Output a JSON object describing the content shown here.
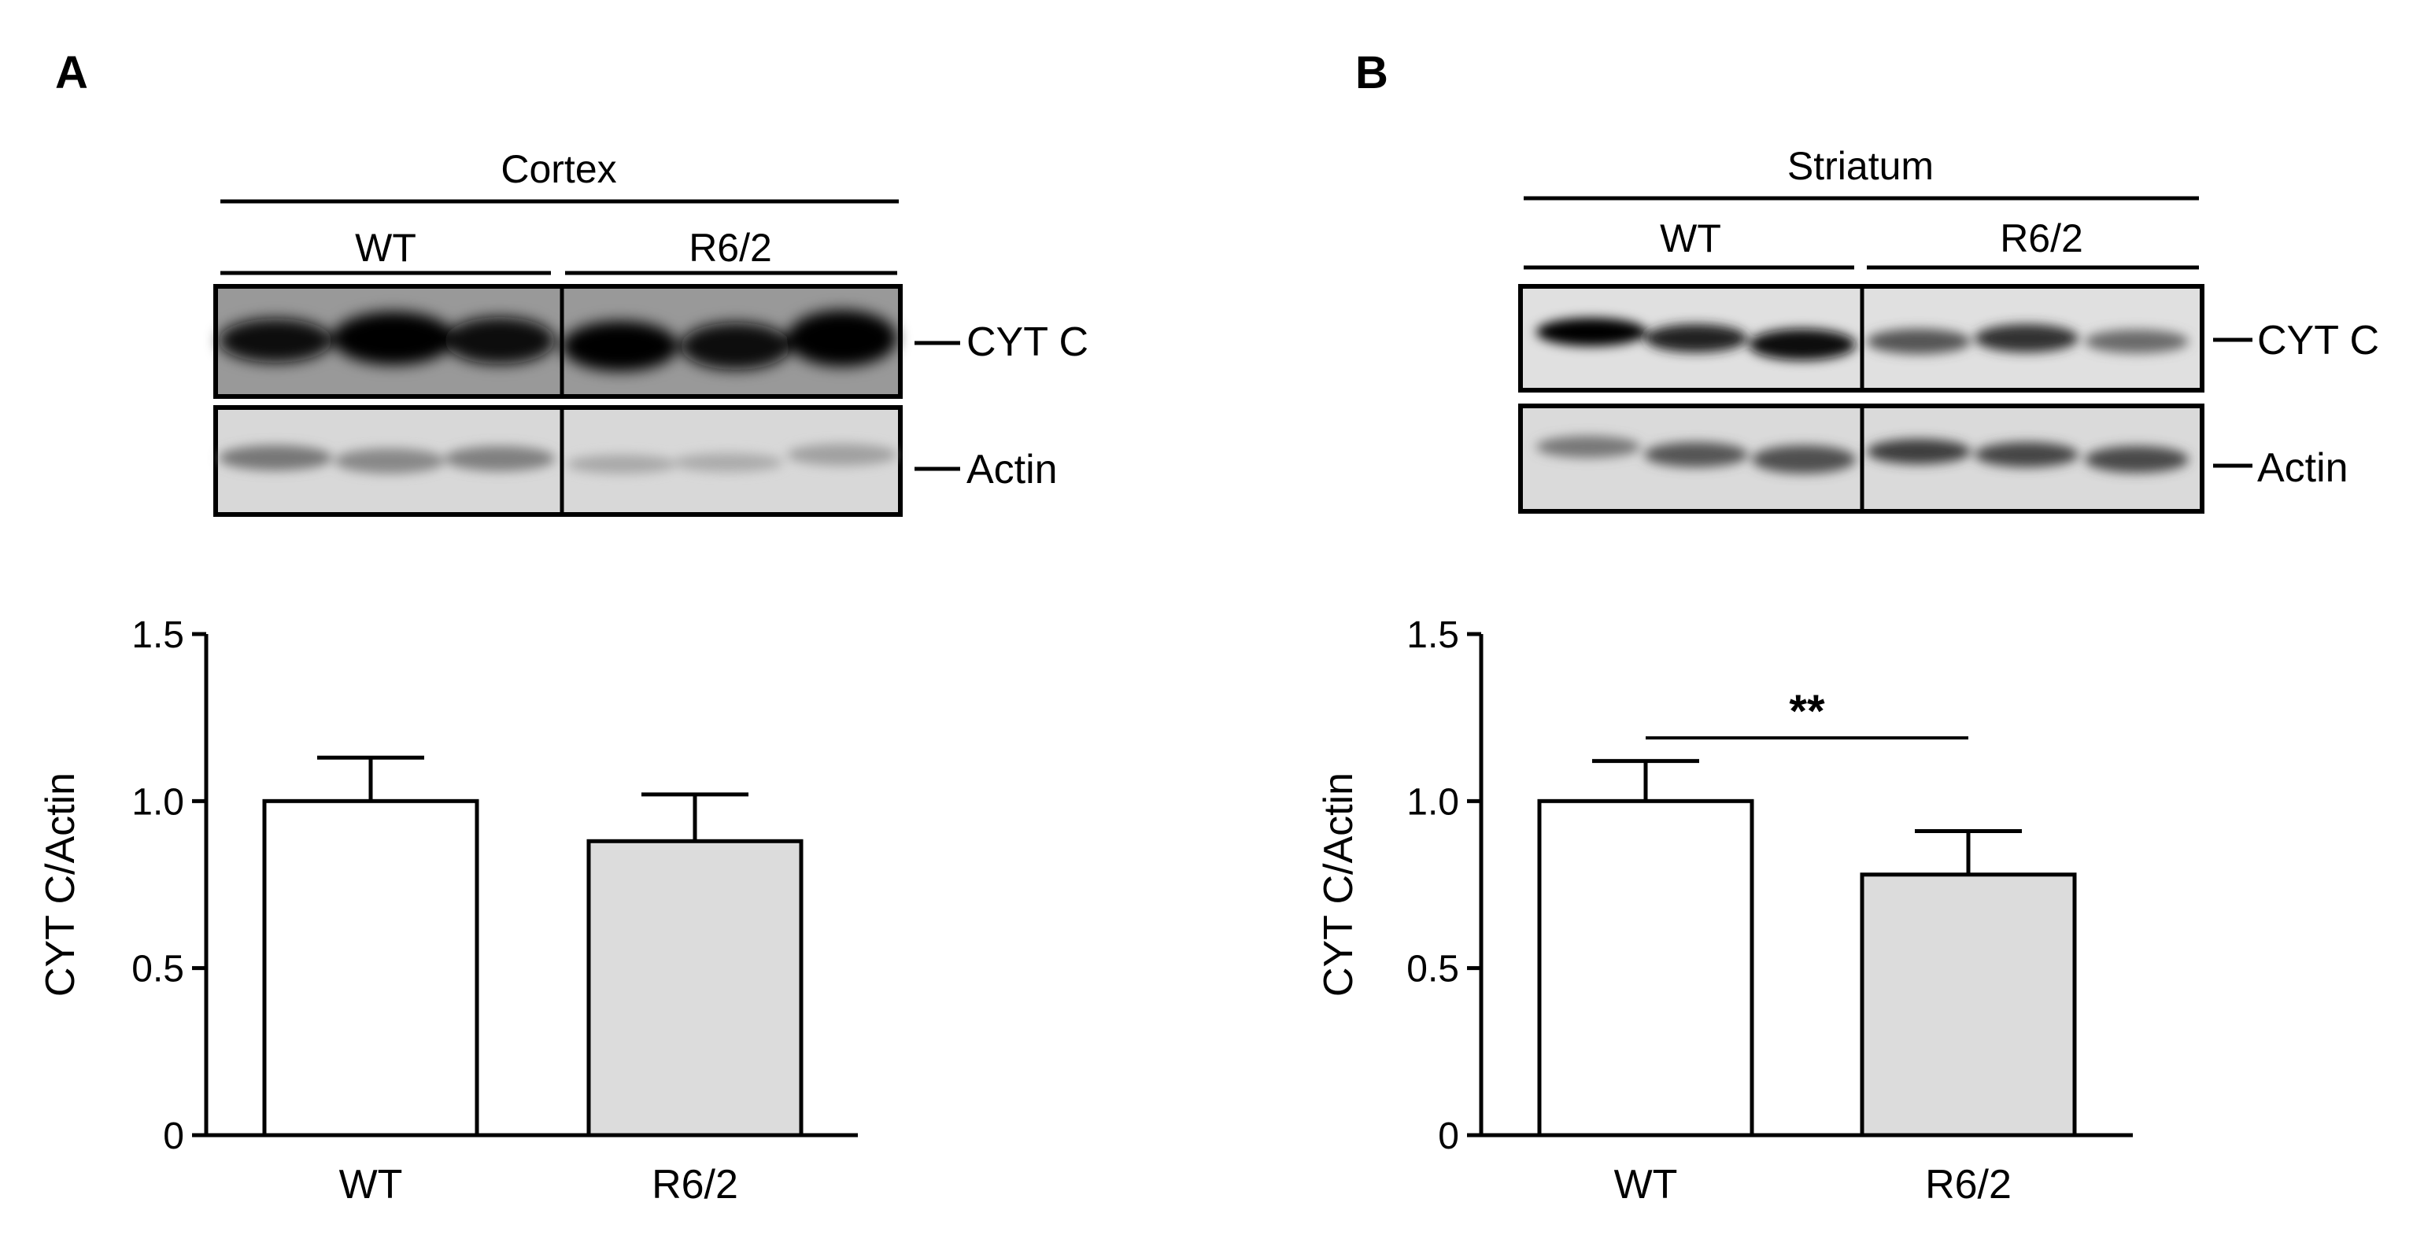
{
  "panels": [
    {
      "letter": "A",
      "blot": {
        "region": "Cortex",
        "groups": [
          "WT",
          "R6/2"
        ],
        "bands": [
          "CYT C",
          "Actin"
        ]
      },
      "chart_data": {
        "type": "bar",
        "categories": [
          "WT",
          "R6/2"
        ],
        "values": [
          1.0,
          0.88
        ],
        "errors": [
          0.13,
          0.14
        ],
        "ylabel": "CYT C/Actin",
        "ylim": [
          0,
          1.5
        ],
        "yticks": [
          "0",
          "0.5",
          "1.0",
          "1.5"
        ],
        "bar_colors": [
          "#ffffff",
          "#dcdcdc"
        ],
        "significance": null
      }
    },
    {
      "letter": "B",
      "blot": {
        "region": "Striatum",
        "groups": [
          "WT",
          "R6/2"
        ],
        "bands": [
          "CYT C",
          "Actin"
        ]
      },
      "chart_data": {
        "type": "bar",
        "categories": [
          "WT",
          "R6/2"
        ],
        "values": [
          1.0,
          0.78
        ],
        "errors": [
          0.12,
          0.13
        ],
        "ylabel": "CYT C/Actin",
        "ylim": [
          0,
          1.5
        ],
        "yticks": [
          "0",
          "0.5",
          "1.0",
          "1.5"
        ],
        "bar_colors": [
          "#ffffff",
          "#dcdcdc"
        ],
        "significance": {
          "label": "**",
          "between": [
            "WT",
            "R6/2"
          ]
        }
      }
    }
  ]
}
